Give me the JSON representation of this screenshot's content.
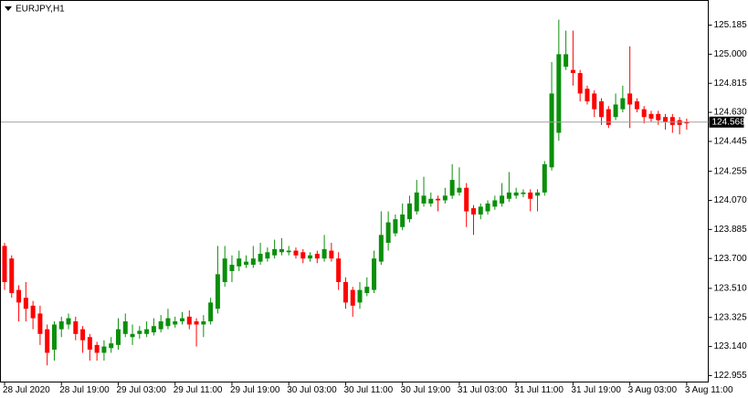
{
  "chart_data": {
    "type": "candlestick",
    "title": "EURJPY,H1",
    "up_color": "#0a8f0a",
    "down_color": "#ff0000",
    "categories": [
      "28 Jul 2020",
      null,
      null,
      null,
      null,
      null,
      null,
      null,
      "28 Jul 19:00",
      null,
      null,
      null,
      null,
      null,
      null,
      null,
      "29 Jul 03:00",
      null,
      null,
      null,
      null,
      null,
      null,
      null,
      "29 Jul 11:00",
      null,
      null,
      null,
      null,
      null,
      null,
      null,
      "29 Jul 19:00",
      null,
      null,
      null,
      null,
      null,
      null,
      null,
      "30 Jul 03:00",
      null,
      null,
      null,
      null,
      null,
      null,
      null,
      "30 Jul 11:00",
      null,
      null,
      null,
      null,
      null,
      null,
      null,
      "30 Jul 19:00",
      null,
      null,
      null,
      null,
      null,
      null,
      null,
      "31 Jul 03:00",
      null,
      null,
      null,
      null,
      null,
      null,
      null,
      "31 Jul 11:00",
      null,
      null,
      null,
      null,
      null,
      null,
      null,
      "31 Jul 19:00",
      null,
      null,
      null,
      null,
      null,
      null,
      null,
      "3 Aug 03:00",
      null,
      null,
      null,
      null,
      null,
      null,
      null,
      "3 Aug 11:00"
    ],
    "open": [
      123.78,
      123.7,
      123.5,
      123.45,
      123.4,
      123.35,
      123.25,
      123.12,
      123.25,
      123.28,
      123.3,
      123.25,
      123.2,
      123.15,
      123.1,
      123.13,
      123.15,
      123.22,
      123.2,
      123.22,
      123.22,
      123.23,
      123.25,
      123.27,
      123.28,
      123.3,
      123.33,
      123.3,
      123.28,
      123.3,
      123.38,
      123.55,
      123.62,
      123.65,
      123.66,
      123.66,
      123.68,
      123.7,
      123.72,
      123.74,
      123.74,
      123.75,
      123.74,
      123.7,
      123.73,
      123.7,
      123.75,
      123.7,
      123.55,
      123.5,
      123.42,
      123.48,
      123.5,
      123.68,
      123.8,
      123.86,
      123.9,
      123.95,
      124.0,
      124.05,
      124.05,
      124.08,
      124.07,
      124.1,
      124.12,
      124.15,
      124.02,
      123.98,
      124.0,
      124.03,
      124.05,
      124.08,
      124.1,
      124.11,
      124.12,
      124.1,
      124.12,
      124.28,
      124.5,
      124.92,
      124.9,
      124.88,
      124.78,
      124.75,
      124.7,
      124.65,
      124.6,
      124.65,
      124.75,
      124.7,
      124.65,
      124.62,
      124.62,
      124.6,
      124.6,
      124.58,
      124.57
    ],
    "high": [
      123.8,
      123.72,
      123.53,
      123.55,
      123.43,
      123.4,
      123.28,
      123.3,
      123.33,
      123.35,
      123.33,
      123.27,
      123.22,
      123.17,
      123.18,
      123.2,
      123.32,
      123.35,
      123.28,
      123.27,
      123.3,
      123.32,
      123.34,
      123.38,
      123.33,
      123.36,
      123.37,
      123.32,
      123.34,
      123.45,
      123.78,
      123.78,
      123.72,
      123.75,
      123.72,
      123.78,
      123.8,
      123.77,
      123.82,
      123.83,
      123.78,
      123.77,
      123.76,
      123.74,
      123.75,
      123.85,
      123.8,
      123.74,
      123.58,
      123.52,
      123.55,
      123.58,
      123.75,
      124.0,
      124.0,
      123.98,
      124.05,
      124.1,
      124.2,
      124.22,
      124.12,
      124.1,
      124.15,
      124.3,
      124.28,
      124.18,
      124.04,
      124.05,
      124.07,
      124.1,
      124.18,
      124.25,
      124.15,
      124.14,
      124.14,
      124.14,
      124.32,
      124.95,
      125.22,
      125.15,
      125.15,
      124.9,
      124.8,
      124.77,
      124.72,
      124.67,
      124.75,
      124.8,
      125.05,
      124.72,
      124.67,
      124.64,
      124.64,
      124.62,
      124.62,
      124.6,
      124.59
    ],
    "low": [
      123.5,
      123.45,
      123.3,
      123.3,
      123.25,
      123.15,
      123.02,
      123.05,
      123.2,
      123.25,
      123.18,
      123.1,
      123.05,
      123.05,
      123.05,
      123.1,
      123.12,
      123.2,
      123.15,
      123.19,
      123.2,
      123.21,
      123.23,
      123.25,
      123.26,
      123.28,
      123.25,
      123.14,
      123.2,
      123.28,
      123.35,
      123.52,
      123.55,
      123.62,
      123.64,
      123.64,
      123.66,
      123.68,
      123.7,
      123.72,
      123.72,
      123.7,
      123.67,
      123.68,
      123.67,
      123.68,
      123.68,
      123.5,
      123.38,
      123.33,
      123.38,
      123.46,
      123.48,
      123.66,
      123.75,
      123.84,
      123.88,
      123.93,
      123.98,
      124.03,
      124.03,
      124.0,
      124.05,
      124.08,
      124.1,
      123.9,
      123.85,
      123.95,
      123.98,
      124.01,
      124.03,
      124.06,
      124.08,
      124.09,
      124.0,
      124.0,
      124.1,
      124.26,
      124.45,
      124.9,
      124.8,
      124.7,
      124.68,
      124.6,
      124.55,
      124.53,
      124.58,
      124.63,
      124.53,
      124.63,
      124.56,
      124.57,
      124.55,
      124.52,
      124.5,
      124.49,
      124.52
    ],
    "close": [
      123.55,
      123.48,
      123.42,
      123.38,
      123.32,
      123.22,
      123.1,
      123.28,
      123.3,
      123.32,
      123.22,
      123.18,
      123.12,
      123.1,
      123.14,
      123.16,
      123.25,
      123.3,
      123.22,
      123.24,
      123.25,
      123.27,
      123.3,
      123.32,
      123.3,
      123.32,
      123.28,
      123.28,
      123.3,
      123.42,
      123.6,
      123.7,
      123.66,
      123.7,
      123.68,
      123.7,
      123.73,
      123.74,
      123.76,
      123.76,
      123.75,
      123.72,
      123.7,
      123.72,
      123.7,
      123.76,
      123.7,
      123.55,
      123.42,
      123.4,
      123.5,
      123.52,
      123.7,
      123.85,
      123.93,
      123.95,
      123.98,
      124.05,
      124.12,
      124.1,
      124.08,
      124.07,
      124.1,
      124.2,
      124.15,
      124.0,
      123.98,
      124.03,
      124.05,
      124.07,
      124.1,
      124.12,
      124.12,
      124.12,
      124.08,
      124.12,
      124.3,
      124.75,
      125.0,
      125.0,
      124.88,
      124.75,
      124.7,
      124.65,
      124.6,
      124.55,
      124.68,
      124.72,
      124.68,
      124.65,
      124.6,
      124.59,
      124.58,
      124.57,
      124.55,
      124.55,
      124.56
    ],
    "last_price": 124.568,
    "ylim": [
      122.914,
      125.342
    ],
    "yticks": [
      122.955,
      {
        "value": 123.14,
        "label": "123.140"
      },
      123.325,
      {
        "value": 123.51,
        "label": "123.510"
      },
      {
        "value": 123.7,
        "label": "123.700"
      },
      123.885,
      {
        "value": 124.07,
        "label": "124.070"
      },
      124.255,
      124.445,
      {
        "value": 124.63,
        "label": "124.630"
      },
      124.815,
      {
        "value": 125.0,
        "label": "125.000"
      },
      125.185
    ],
    "grid": false
  }
}
